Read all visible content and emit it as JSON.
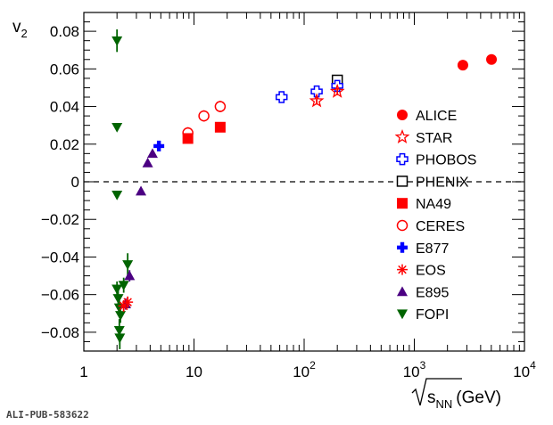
{
  "chart_data": {
    "type": "scatter",
    "xscale": "log",
    "xlim": [
      1,
      10000
    ],
    "ylim": [
      -0.09,
      0.09
    ],
    "ylabel": "v",
    "ylabel_sub": "2",
    "xlabel_root_text": "s",
    "xlabel_root_sub": "NN",
    "xlabel_unit": "(GeV)",
    "zero_line": "dashed",
    "x_ticks": [
      {
        "value": 1,
        "label": "1"
      },
      {
        "value": 10,
        "label": "10"
      },
      {
        "value": 100,
        "label": "10",
        "sup": "2"
      },
      {
        "value": 1000,
        "label": "10",
        "sup": "3"
      },
      {
        "value": 10000,
        "label": "10",
        "sup": "4"
      }
    ],
    "y_ticks": [
      {
        "value": 0.08,
        "label": "0.08"
      },
      {
        "value": 0.06,
        "label": "0.06"
      },
      {
        "value": 0.04,
        "label": "0.04"
      },
      {
        "value": 0.02,
        "label": "0.02"
      },
      {
        "value": 0,
        "label": "0"
      },
      {
        "value": -0.02,
        "label": "−0.02"
      },
      {
        "value": -0.04,
        "label": "−0.04"
      },
      {
        "value": -0.06,
        "label": "−0.06"
      },
      {
        "value": -0.08,
        "label": "−0.08"
      }
    ],
    "legend_position": "right",
    "series": [
      {
        "name": "ALICE",
        "marker": "circle-filled",
        "color": "#ff0000",
        "points": [
          [
            2760,
            0.062,
            0.001
          ],
          [
            5020,
            0.065,
            0.001
          ]
        ]
      },
      {
        "name": "STAR",
        "marker": "star-open",
        "color": "#ff0000",
        "points": [
          [
            130,
            0.043,
            0.002
          ],
          [
            200,
            0.048,
            0.002
          ]
        ]
      },
      {
        "name": "PHOBOS",
        "marker": "cross-open",
        "color": "#0000ff",
        "points": [
          [
            62.4,
            0.045,
            0.003
          ],
          [
            130,
            0.048,
            0.003
          ],
          [
            200,
            0.051,
            0.003
          ]
        ]
      },
      {
        "name": "PHENIX",
        "marker": "square-open",
        "color": "#000000",
        "points": [
          [
            200,
            0.054,
            0.002
          ]
        ]
      },
      {
        "name": "NA49",
        "marker": "square-filled",
        "color": "#ff0000",
        "points": [
          [
            8.8,
            0.023,
            0.002
          ],
          [
            17.3,
            0.029,
            0.002
          ]
        ]
      },
      {
        "name": "CERES",
        "marker": "circle-open",
        "color": "#ff0000",
        "points": [
          [
            8.8,
            0.026,
            0.003
          ],
          [
            12.3,
            0.035,
            0.003
          ],
          [
            17.3,
            0.04,
            0.003
          ]
        ]
      },
      {
        "name": "E877",
        "marker": "cross-filled",
        "color": "#0000ff",
        "points": [
          [
            4.8,
            0.019,
            0.002
          ]
        ]
      },
      {
        "name": "EOS",
        "marker": "asterisk",
        "color": "#ff0000",
        "points": [
          [
            2.3,
            -0.066,
            0.003
          ],
          [
            2.5,
            -0.064,
            0.003
          ]
        ]
      },
      {
        "name": "E895",
        "marker": "triangle-up-filled",
        "color": "#4b0082",
        "points": [
          [
            2.4,
            -0.065,
            0.003
          ],
          [
            2.6,
            -0.05,
            0.003
          ],
          [
            3.3,
            -0.005,
            0.002
          ],
          [
            3.8,
            0.01,
            0.002
          ],
          [
            4.2,
            0.015,
            0.002
          ]
        ]
      },
      {
        "name": "FOPI",
        "marker": "triangle-down-filled",
        "color": "#006400",
        "points": [
          [
            2.0,
            0.075,
            0.006
          ],
          [
            2.0,
            0.029,
            0.002
          ],
          [
            2.0,
            -0.007,
            0.002
          ],
          [
            2.0,
            -0.057,
            0.004
          ],
          [
            2.05,
            -0.062,
            0.004
          ],
          [
            2.1,
            -0.067,
            0.004
          ],
          [
            2.15,
            -0.071,
            0.004
          ],
          [
            2.1,
            -0.079,
            0.006
          ],
          [
            2.12,
            -0.083,
            0.006
          ],
          [
            2.3,
            -0.055,
            0.004
          ],
          [
            2.5,
            -0.044,
            0.006
          ]
        ]
      }
    ]
  },
  "footer": {
    "publication_id": "ALI-PUB-583622"
  }
}
